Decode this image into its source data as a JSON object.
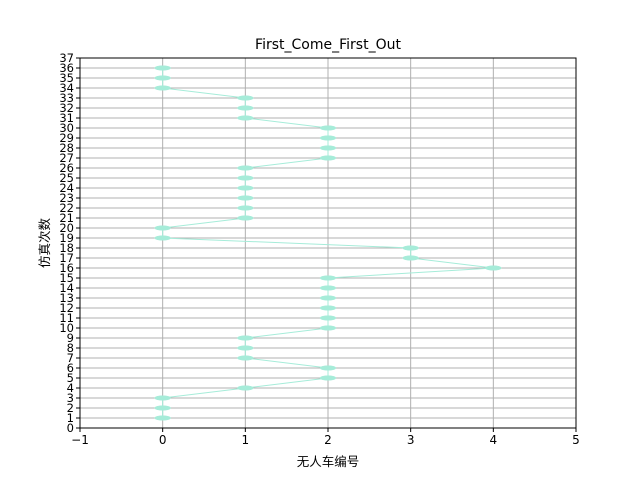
{
  "chart_data": {
    "type": "scatter",
    "title": "First_Come_First_Out",
    "xlabel": "无人车编号",
    "ylabel": "仿真次数",
    "xlim": [
      -1,
      5
    ],
    "ylim": [
      0,
      37
    ],
    "x_ticks": [
      "−1",
      "0",
      "1",
      "2",
      "3",
      "4",
      "5"
    ],
    "y_ticks": [
      "0",
      "1",
      "2",
      "3",
      "4",
      "5",
      "6",
      "7",
      "8",
      "9",
      "10",
      "11",
      "12",
      "13",
      "14",
      "15",
      "16",
      "17",
      "18",
      "19",
      "20",
      "21",
      "22",
      "23",
      "24",
      "25",
      "26",
      "27",
      "28",
      "29",
      "30",
      "31",
      "32",
      "33",
      "34",
      "35",
      "36",
      "37"
    ],
    "grid": true,
    "marker_color": "#a6ecd9",
    "grid_color": "#b0b0b0",
    "points": [
      {
        "sim": 1,
        "car": 0
      },
      {
        "sim": 2,
        "car": 0
      },
      {
        "sim": 3,
        "car": 0
      },
      {
        "sim": 4,
        "car": 1
      },
      {
        "sim": 5,
        "car": 2
      },
      {
        "sim": 6,
        "car": 2
      },
      {
        "sim": 7,
        "car": 1
      },
      {
        "sim": 8,
        "car": 1
      },
      {
        "sim": 9,
        "car": 1
      },
      {
        "sim": 10,
        "car": 2
      },
      {
        "sim": 11,
        "car": 2
      },
      {
        "sim": 12,
        "car": 2
      },
      {
        "sim": 13,
        "car": 2
      },
      {
        "sim": 14,
        "car": 2
      },
      {
        "sim": 15,
        "car": 2
      },
      {
        "sim": 16,
        "car": 4
      },
      {
        "sim": 17,
        "car": 3
      },
      {
        "sim": 18,
        "car": 3
      },
      {
        "sim": 19,
        "car": 0
      },
      {
        "sim": 20,
        "car": 0
      },
      {
        "sim": 21,
        "car": 1
      },
      {
        "sim": 22,
        "car": 1
      },
      {
        "sim": 23,
        "car": 1
      },
      {
        "sim": 24,
        "car": 1
      },
      {
        "sim": 25,
        "car": 1
      },
      {
        "sim": 26,
        "car": 1
      },
      {
        "sim": 27,
        "car": 2
      },
      {
        "sim": 28,
        "car": 2
      },
      {
        "sim": 29,
        "car": 2
      },
      {
        "sim": 30,
        "car": 2
      },
      {
        "sim": 31,
        "car": 1
      },
      {
        "sim": 32,
        "car": 1
      },
      {
        "sim": 33,
        "car": 1
      },
      {
        "sim": 34,
        "car": 0
      },
      {
        "sim": 35,
        "car": 0
      },
      {
        "sim": 36,
        "car": 0
      }
    ]
  }
}
